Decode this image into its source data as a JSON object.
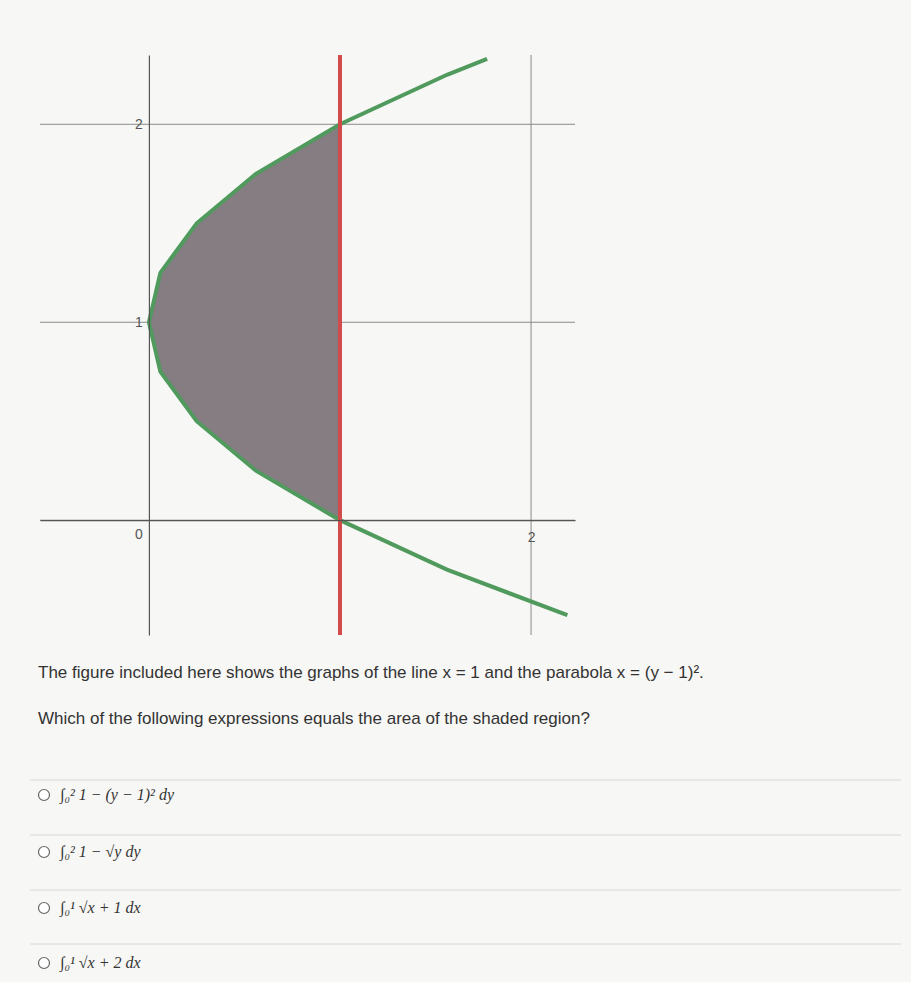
{
  "chart_data": {
    "type": "line",
    "xlim": [
      -0.57,
      2.23
    ],
    "ylim": [
      -0.58,
      2.35
    ],
    "xticks": [
      2
    ],
    "yticks": [
      0,
      1,
      2
    ],
    "grid": true,
    "series": [
      {
        "type": "area",
        "color": "#857d82",
        "x": [
          1,
          0.56,
          0.25,
          0.06,
          0,
          0.06,
          0.25,
          0.56,
          1
        ],
        "values": [
          0,
          0.25,
          0.5,
          0.75,
          1,
          1.25,
          1.5,
          1.75,
          2
        ]
      },
      {
        "type": "line",
        "color": "#4f9a5c",
        "x": [
          2.19,
          1.56,
          1,
          0.56,
          0.25,
          0.06,
          0,
          0.06,
          0.25,
          0.56,
          1,
          1.56,
          1.77
        ],
        "values": [
          -0.48,
          -0.25,
          0,
          0.25,
          0.5,
          0.75,
          1,
          1.25,
          1.5,
          1.75,
          2,
          2.25,
          2.33
        ]
      },
      {
        "type": "line",
        "color": "#d24b4b",
        "x": [
          1,
          1
        ],
        "values": [
          -0.58,
          2.35
        ]
      }
    ]
  },
  "question": {
    "lines": [
      "The figure included here shows the graphs of the line x = 1 and the parabola x = (y − 1)².",
      "Which of the following expressions equals the area of the shaded region?"
    ],
    "options": [
      "∫₀² 1 − (y − 1)² dy",
      "∫₀² 1 − √y dy",
      "∫₀¹ √x + 1 dx",
      "∫₀¹ √x + 2 dx"
    ]
  }
}
